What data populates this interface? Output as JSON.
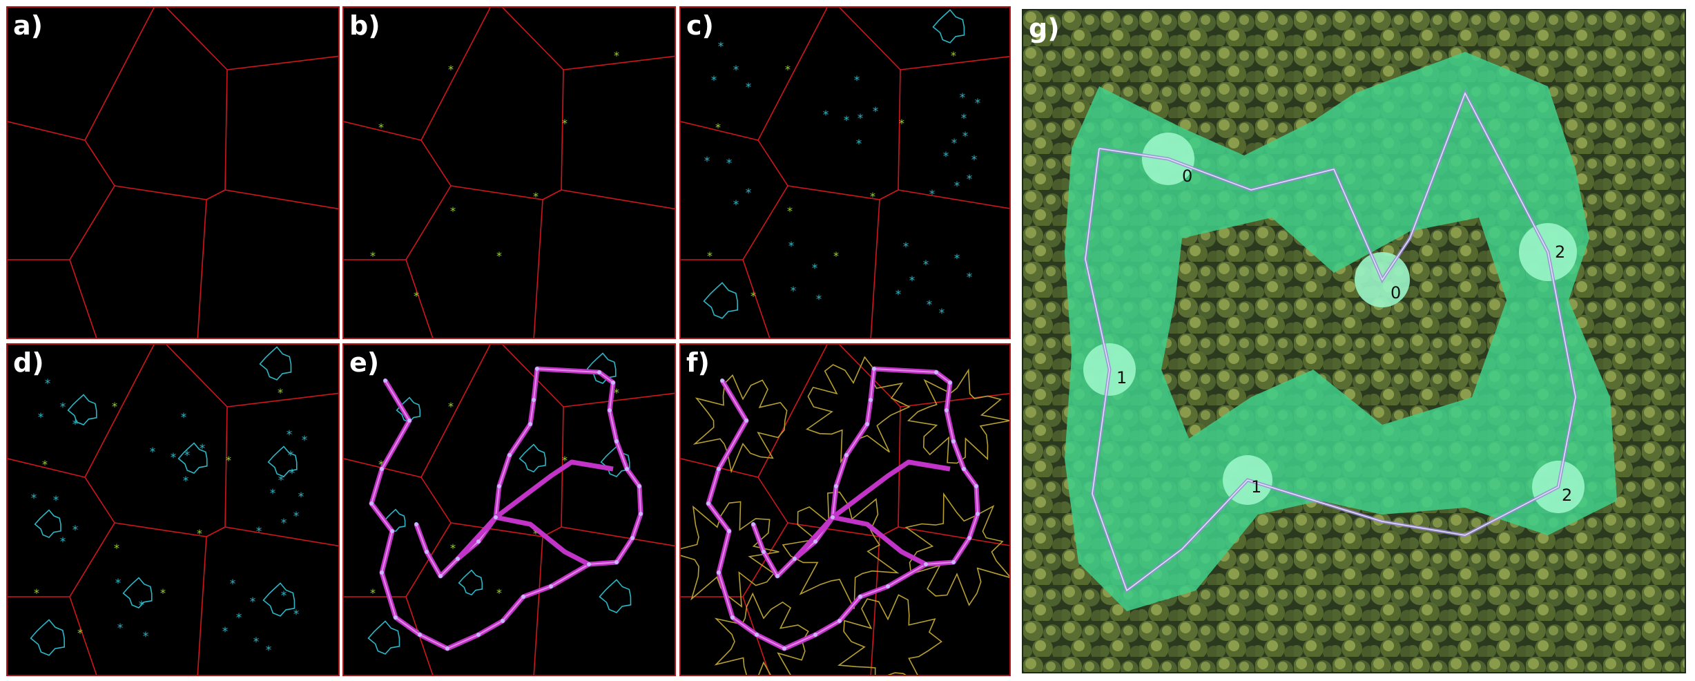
{
  "panels": {
    "a": {
      "label": "a)"
    },
    "b": {
      "label": "b)"
    },
    "c": {
      "label": "c)"
    },
    "d": {
      "label": "d)"
    },
    "e": {
      "label": "e)"
    },
    "f": {
      "label": "f)"
    },
    "g": {
      "label": "g)"
    }
  },
  "g_labels": [
    "0",
    "0",
    "2",
    "1",
    "1",
    "2"
  ],
  "colors": {
    "panel_bg": "#000000",
    "voronoi": "#d0161c",
    "portal": "#9bd42a",
    "cyan": "#2bb8c8",
    "road": "#c233c8",
    "road_inner": "#e08ae6",
    "contour": "#b8a030",
    "clearing": "#5de8a0",
    "forest": "#2f4a26"
  },
  "icons": [
    "asterisk-marker",
    "portal-marker"
  ]
}
